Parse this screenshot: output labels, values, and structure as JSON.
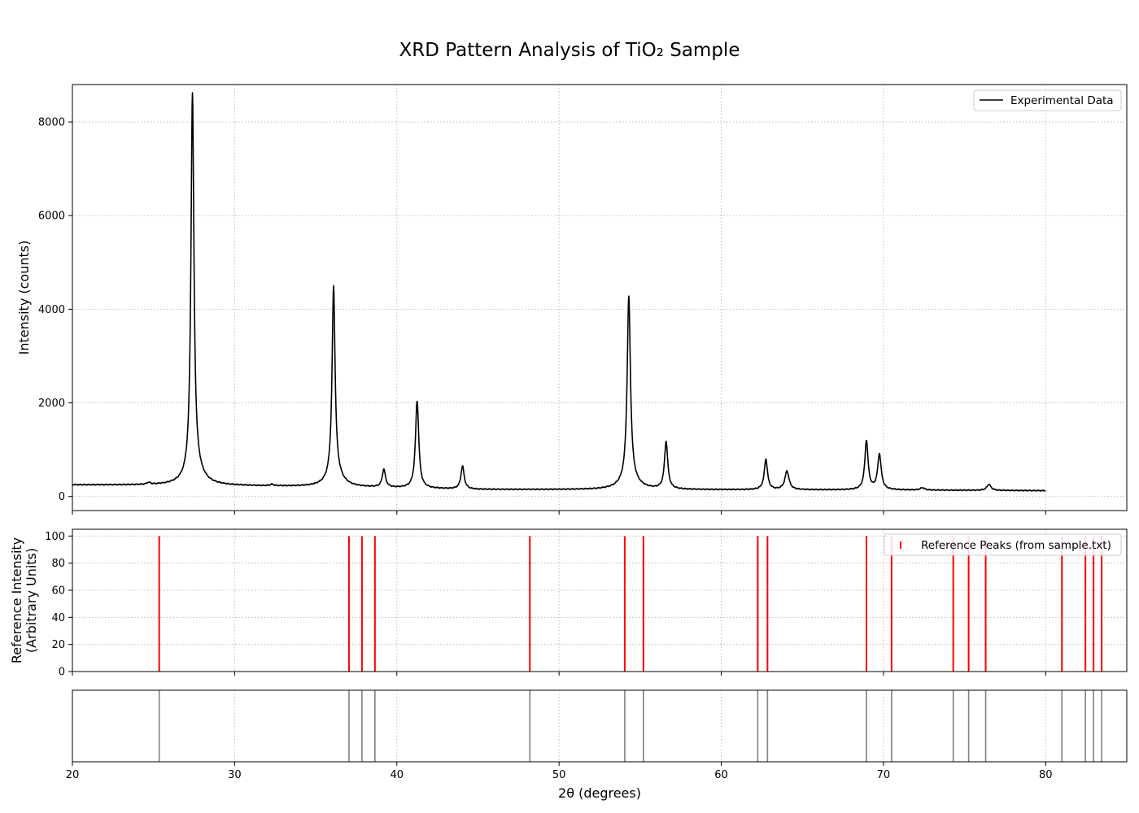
{
  "chart_data": {
    "type": "line",
    "title": "XRD Pattern Analysis of TiO₂ Sample",
    "xlabel": "2θ (degrees)",
    "xlim": [
      20,
      85
    ],
    "x_ticks": [
      20,
      30,
      40,
      50,
      60,
      70,
      80
    ],
    "grid": true,
    "panels": {
      "experimental": {
        "ylabel": "Intensity (counts)",
        "ylim": [
          -300,
          8800
        ],
        "y_ticks": [
          0,
          2000,
          4000,
          6000,
          8000
        ],
        "legend": "Experimental Data",
        "legend_position": "top-right",
        "line_color": "#000000",
        "x_range": [
          20,
          80
        ],
        "baseline": [
          [
            20,
            250
          ],
          [
            27,
            240
          ],
          [
            36,
            205
          ],
          [
            45,
            150
          ],
          [
            60,
            145
          ],
          [
            70,
            140
          ],
          [
            80,
            125
          ]
        ],
        "peaks": [
          {
            "x": 24.7,
            "height": 40,
            "width": 0.12
          },
          {
            "x": 27.4,
            "height": 8100,
            "width": 0.11
          },
          {
            "x": 27.55,
            "height": 300,
            "width": 0.55
          },
          {
            "x": 32.3,
            "height": 30,
            "width": 0.12
          },
          {
            "x": 36.1,
            "height": 4050,
            "width": 0.11
          },
          {
            "x": 36.2,
            "height": 250,
            "width": 0.5
          },
          {
            "x": 39.2,
            "height": 380,
            "width": 0.12
          },
          {
            "x": 41.25,
            "height": 1870,
            "width": 0.12
          },
          {
            "x": 44.05,
            "height": 490,
            "width": 0.12
          },
          {
            "x": 54.3,
            "height": 3930,
            "width": 0.12
          },
          {
            "x": 54.35,
            "height": 200,
            "width": 0.6
          },
          {
            "x": 56.6,
            "height": 1010,
            "width": 0.12
          },
          {
            "x": 62.75,
            "height": 650,
            "width": 0.12
          },
          {
            "x": 64.05,
            "height": 400,
            "width": 0.15
          },
          {
            "x": 68.95,
            "height": 1050,
            "width": 0.12
          },
          {
            "x": 69.75,
            "height": 760,
            "width": 0.13
          },
          {
            "x": 72.4,
            "height": 50,
            "width": 0.15
          },
          {
            "x": 76.5,
            "height": 130,
            "width": 0.15
          }
        ]
      },
      "reference": {
        "ylabel": [
          "Reference Intensity",
          "(Arbitrary Units)"
        ],
        "ylim": [
          0,
          105
        ],
        "y_ticks": [
          0,
          20,
          40,
          60,
          80,
          100
        ],
        "legend": "Reference Peaks (from sample.txt)",
        "legend_position": "top-right",
        "color": "#ff0000",
        "positions": [
          25.35,
          37.05,
          37.85,
          38.65,
          48.2,
          54.05,
          55.2,
          62.25,
          62.85,
          68.95,
          70.5,
          74.3,
          75.25,
          76.3,
          81.0,
          82.45,
          82.95,
          83.45
        ],
        "intensities": [
          100,
          100,
          100,
          100,
          100,
          100,
          100,
          100,
          100,
          100,
          100,
          100,
          100,
          100,
          100,
          100,
          100,
          100
        ]
      },
      "markers": {
        "color": "#808080",
        "positions": [
          25.35,
          37.05,
          37.85,
          38.65,
          48.2,
          54.05,
          55.2,
          62.25,
          62.85,
          68.95,
          70.5,
          74.3,
          75.25,
          76.3,
          81.0,
          82.45,
          82.95,
          83.45
        ]
      }
    }
  }
}
